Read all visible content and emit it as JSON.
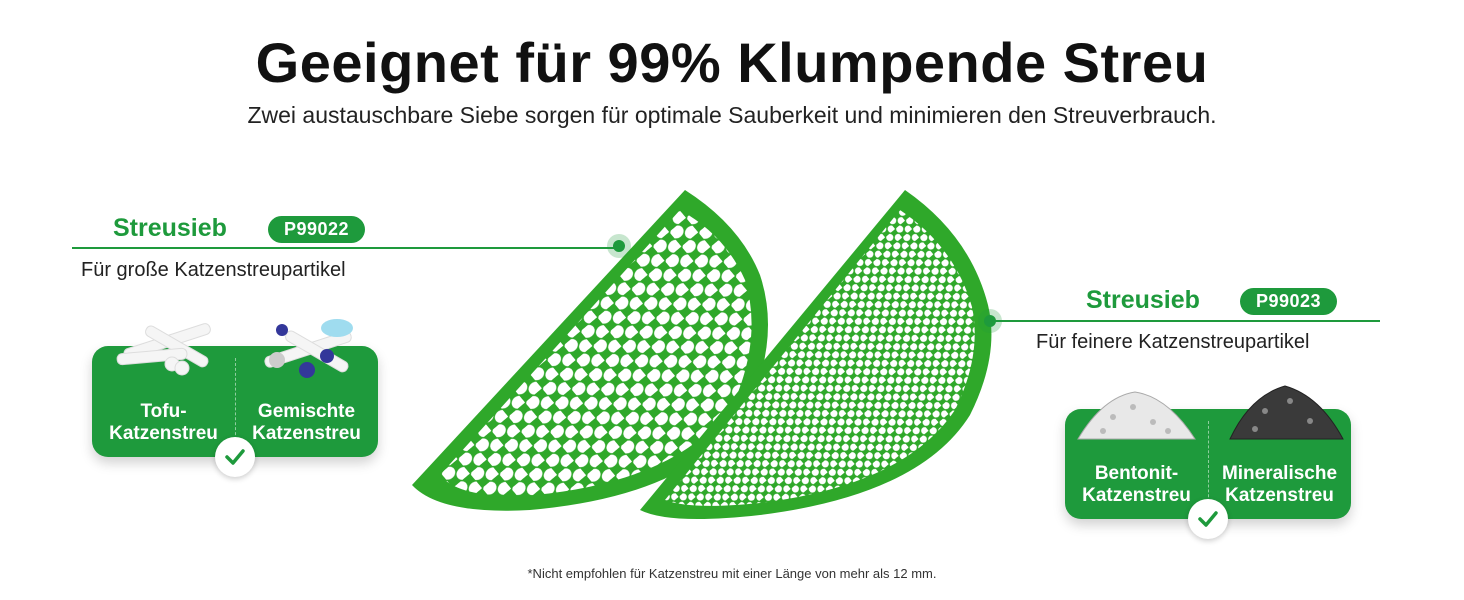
{
  "header": {
    "title": "Geeignet für 99% Klumpende Streu",
    "subtitle": "Zwei austauschbare Siebe sorgen für optimale Sauberkeit und minimieren den Streuverbrauch."
  },
  "left": {
    "label": "Streusieb",
    "badge": "P99022",
    "description": "Für große Katzenstreupartikel",
    "types": [
      "Tofu-\nKatzenstreu",
      "Gemischte\nKatzenstreu"
    ],
    "types_line1": [
      "Tofu-",
      "Gemischte"
    ],
    "types_line2": [
      "Katzenstreu",
      "Katzenstreu"
    ]
  },
  "right": {
    "label": "Streusieb",
    "badge": "P99023",
    "description": "Für feinere Katzenstreupartikel",
    "types_line1": [
      "Bentonit-",
      "Mineralische"
    ],
    "types_line2": [
      "Katzenstreu",
      "Katzenstreu"
    ]
  },
  "footnote": "*Nicht empfohlen für Katzenstreu mit einer Länge von mehr als 12 mm.",
  "colors": {
    "accent": "#1e9a3c",
    "sieve": "#2fa82a"
  }
}
